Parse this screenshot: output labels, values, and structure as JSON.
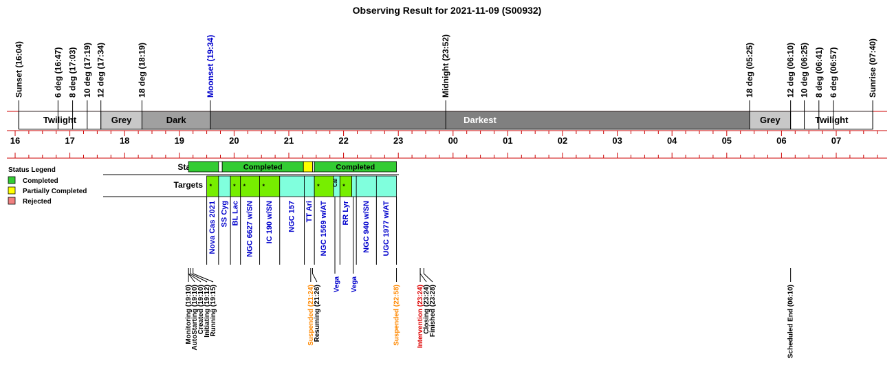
{
  "title": "Observing Result for 2021-11-09 (S00932)",
  "colors": {
    "red_line": "#cc0000",
    "twilight": "#ffffff",
    "grey": "#c8c8c8",
    "dark": "#a0a0a0",
    "darkest": "#808080",
    "completed": "#33cc33",
    "partial": "#ffff00",
    "rejected": "#f08080",
    "target_lime": "#77ee00",
    "target_cyan": "#80ffdd",
    "blue": "#0000cc",
    "orange": "#ff8800",
    "red": "#dd0000",
    "black": "#000000"
  },
  "timeline": {
    "ref": "16:00",
    "hour_labels": [
      "16",
      "17",
      "18",
      "19",
      "20",
      "21",
      "22",
      "23",
      "00",
      "01",
      "02",
      "03",
      "04",
      "05",
      "06",
      "07"
    ]
  },
  "events_top": [
    {
      "label": "Sunset (16:04)",
      "time": "16:04",
      "color": "black"
    },
    {
      "label": "6 deg (16:47)",
      "time": "16:47",
      "color": "black"
    },
    {
      "label": "8 deg (17:03)",
      "time": "17:03",
      "color": "black"
    },
    {
      "label": "10 deg (17:19)",
      "time": "17:19",
      "color": "black"
    },
    {
      "label": "12 deg (17:34)",
      "time": "17:34",
      "color": "black"
    },
    {
      "label": "18 deg (18:19)",
      "time": "18:19",
      "color": "black"
    },
    {
      "label": "Moonset (19:34)",
      "time": "19:34",
      "color": "blue"
    },
    {
      "label": "Midnight (23:52)",
      "time": "23:52",
      "color": "black"
    },
    {
      "label": "18 deg (05:25)",
      "time": "05:25",
      "color": "black"
    },
    {
      "label": "12 deg (06:10)",
      "time": "06:10",
      "color": "black"
    },
    {
      "label": "10 deg (06:25)",
      "time": "06:25",
      "color": "black"
    },
    {
      "label": "8 deg (06:41)",
      "time": "06:41",
      "color": "black"
    },
    {
      "label": "6 deg (06:57)",
      "time": "06:57",
      "color": "black"
    },
    {
      "label": "Sunrise (07:40)",
      "time": "07:40",
      "color": "black"
    }
  ],
  "sky_bands": [
    {
      "label": "Twilight",
      "start": "16:04",
      "end": "17:34",
      "color": "twilight",
      "text_color": "black"
    },
    {
      "label": "Grey",
      "start": "17:34",
      "end": "18:19",
      "color": "grey",
      "text_color": "black"
    },
    {
      "label": "Dark",
      "start": "18:19",
      "end": "19:34",
      "color": "dark",
      "text_color": "black"
    },
    {
      "label": "Darkest",
      "start": "19:34",
      "end": "05:25",
      "color": "darkest",
      "text_color": "white"
    },
    {
      "label": "Grey",
      "start": "05:25",
      "end": "06:10",
      "color": "grey",
      "text_color": "black"
    },
    {
      "label": "Twilight",
      "start": "06:10",
      "end": "07:40",
      "color": "twilight",
      "text_color": "black"
    }
  ],
  "status_row": {
    "label": "Status",
    "segments": [
      {
        "start": "19:10",
        "end": "19:43",
        "color": "completed",
        "text": ""
      },
      {
        "start": "19:43",
        "end": "19:47",
        "color": "twilight",
        "text": ""
      },
      {
        "start": "19:47",
        "end": "21:16",
        "color": "completed",
        "text": "Completed"
      },
      {
        "start": "21:16",
        "end": "21:26",
        "color": "partial",
        "text": ""
      },
      {
        "start": "21:26",
        "end": "21:28",
        "color": "twilight",
        "text": ""
      },
      {
        "start": "21:28",
        "end": "22:58",
        "color": "completed",
        "text": "Completed"
      }
    ]
  },
  "targets_row": {
    "label": "Targets",
    "targets": [
      {
        "name": "Nova Cas 2021",
        "start": "19:30",
        "end": "19:43",
        "color": "target_lime",
        "mark": "*"
      },
      {
        "name": "SS Cyg",
        "start": "19:43",
        "end": "19:56",
        "color": "target_cyan",
        "mark": ""
      },
      {
        "name": "BL Lac",
        "start": "19:56",
        "end": "20:07",
        "color": "target_lime",
        "mark": "*"
      },
      {
        "name": "NGC 6627 w/SN",
        "start": "20:07",
        "end": "20:28",
        "color": "target_lime",
        "mark": "*"
      },
      {
        "name": "IC 190 w/SN",
        "start": "20:28",
        "end": "20:50",
        "color": "target_lime",
        "mark": "*"
      },
      {
        "name": "NGC 157",
        "start": "20:50",
        "end": "21:17",
        "color": "target_cyan",
        "mark": ""
      },
      {
        "name": "TT Ari",
        "start": "21:17",
        "end": "21:28",
        "color": "target_cyan",
        "mark": ""
      },
      {
        "name": "NGC 1569 w/AT",
        "start": "21:28",
        "end": "21:49",
        "color": "target_lime",
        "mark": "*"
      },
      {
        "name": "Vega",
        "start": "21:49",
        "end": "21:56",
        "color": "target_cyan",
        "mark": "Cal",
        "label_below": true
      },
      {
        "name": "RR Lyr",
        "start": "21:56",
        "end": "22:09",
        "color": "target_lime",
        "mark": "*"
      },
      {
        "name": "Vega",
        "start": "22:09",
        "end": "22:14",
        "color": "target_cyan",
        "mark": "",
        "label_below": true
      },
      {
        "name": "NGC 940 w/SN",
        "start": "22:14",
        "end": "22:36",
        "color": "target_cyan",
        "mark": ""
      },
      {
        "name": "UGC 1977 w/AT",
        "start": "22:36",
        "end": "22:58",
        "color": "target_cyan",
        "mark": ""
      }
    ]
  },
  "legend": {
    "title": "Status Legend",
    "items": [
      {
        "label": "Completed",
        "color": "completed"
      },
      {
        "label": "Partially Completed",
        "color": "partial"
      },
      {
        "label": "Rejected",
        "color": "rejected"
      }
    ]
  },
  "events_bottom": [
    {
      "label": "Monitoring (19:10)",
      "time": "19:10",
      "color": "black"
    },
    {
      "label": "AutoStarting (19:10)",
      "time": "19:10",
      "color": "black"
    },
    {
      "label": "Created (19:10)",
      "time": "19:10",
      "color": "black"
    },
    {
      "label": "Initiating (19:12)",
      "time": "19:12",
      "color": "black"
    },
    {
      "label": "Running (19:15)",
      "time": "19:15",
      "color": "black"
    },
    {
      "label": "Suspended (21:24)",
      "time": "21:24",
      "color": "orange"
    },
    {
      "label": "Resuming (21:26)",
      "time": "21:26",
      "color": "black"
    },
    {
      "label": "Suspended (22:58)",
      "time": "22:58",
      "color": "orange"
    },
    {
      "label": "Intervention (23:24)",
      "time": "23:24",
      "color": "red"
    },
    {
      "label": "Closing (23:24)",
      "time": "23:24",
      "color": "black"
    },
    {
      "label": "Finished (23:28)",
      "time": "23:28",
      "color": "black"
    },
    {
      "label": "Scheduled End (06:10)",
      "time": "06:10",
      "color": "black"
    }
  ]
}
